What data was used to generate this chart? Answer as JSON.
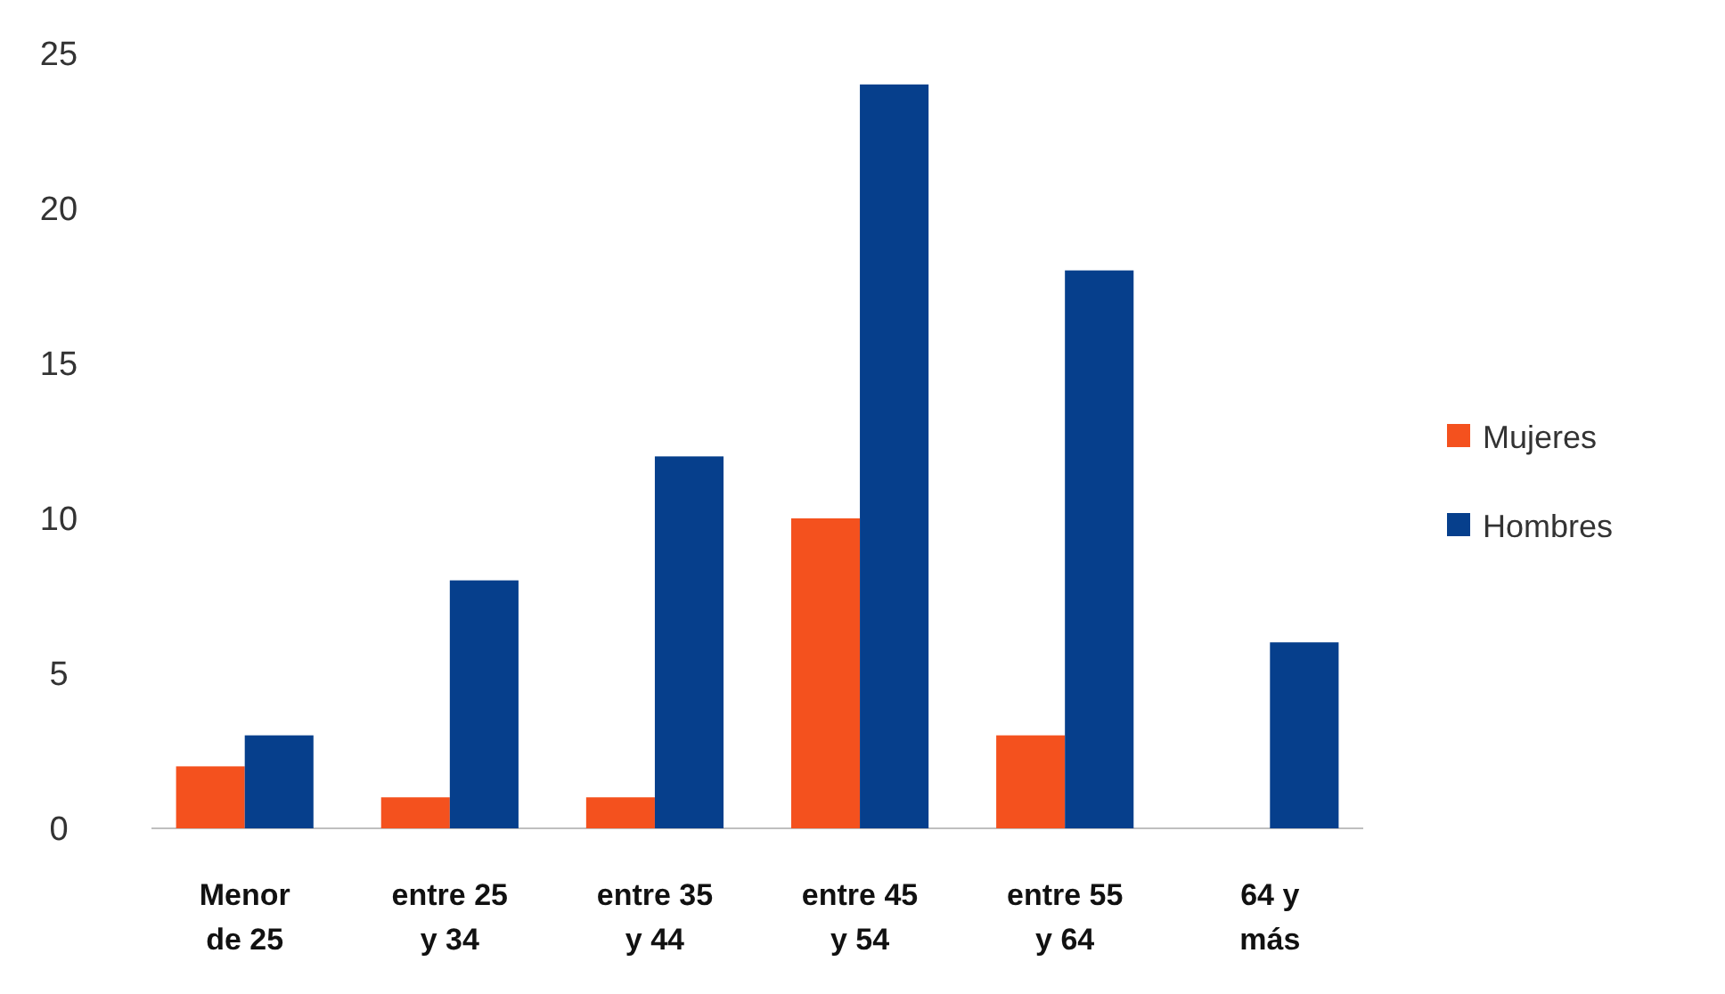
{
  "chart_data": {
    "type": "bar",
    "categories": [
      "Menor de 25",
      "entre 25 y 34",
      "entre 35 y 44",
      "entre 45 y 54",
      "entre 55 y 64",
      "64 y más"
    ],
    "series": [
      {
        "name": "Mujeres",
        "color": "#f4511e",
        "values": [
          2,
          1,
          1,
          10,
          3,
          0
        ]
      },
      {
        "name": "Hombres",
        "color": "#063f8c",
        "values": [
          3,
          8,
          12,
          24,
          18,
          6
        ]
      }
    ],
    "ylim": [
      0,
      25
    ],
    "yticks": [
      0,
      5,
      10,
      15,
      20,
      25
    ],
    "grid": false,
    "legend": "right"
  }
}
